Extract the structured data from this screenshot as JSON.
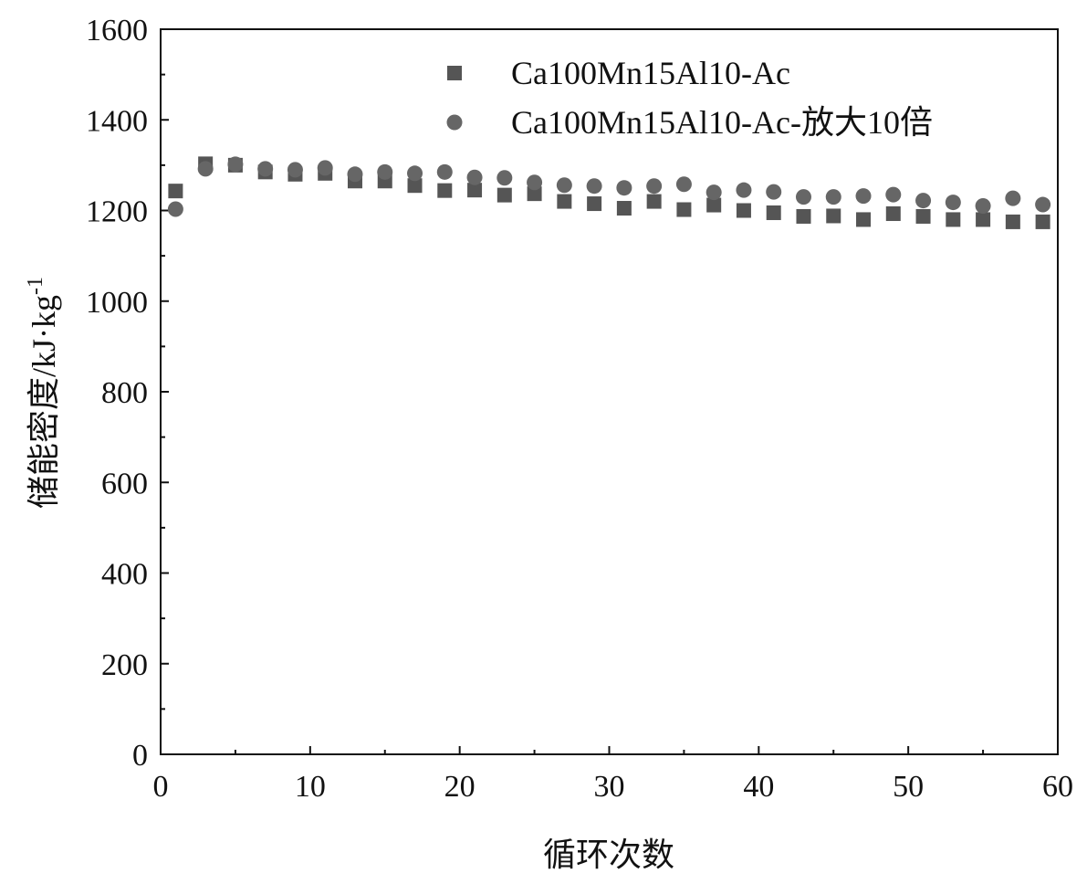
{
  "chart_data": {
    "type": "scatter",
    "title": "",
    "xlabel": "循环次数",
    "ylabel_main": "储能密度/kJ·kg",
    "ylabel_sup": "-1",
    "xlim": [
      0,
      60
    ],
    "ylim": [
      0,
      1600
    ],
    "xticks": [
      0,
      10,
      20,
      30,
      40,
      50,
      60
    ],
    "yticks": [
      0,
      200,
      400,
      600,
      800,
      1000,
      1200,
      1400,
      1600
    ],
    "legend_position": "top-right",
    "grid": false,
    "series": [
      {
        "name": "Ca100Mn15Al10-Ac",
        "marker": "square",
        "color": "#555555",
        "x": [
          1,
          3,
          5,
          7,
          9,
          11,
          13,
          15,
          17,
          19,
          21,
          23,
          25,
          27,
          29,
          31,
          33,
          35,
          37,
          39,
          41,
          43,
          45,
          47,
          49,
          51,
          53,
          55,
          57,
          59
        ],
        "y": [
          1243,
          1303,
          1300,
          1285,
          1280,
          1282,
          1265,
          1265,
          1255,
          1244,
          1245,
          1234,
          1237,
          1220,
          1215,
          1205,
          1220,
          1202,
          1212,
          1200,
          1195,
          1187,
          1188,
          1180,
          1193,
          1187,
          1180,
          1180,
          1175,
          1175
        ]
      },
      {
        "name": "Ca100Mn15Al10-Ac-放大10倍",
        "marker": "circle",
        "color": "#666666",
        "x": [
          1,
          3,
          5,
          7,
          9,
          11,
          13,
          15,
          17,
          19,
          21,
          23,
          25,
          27,
          29,
          31,
          33,
          35,
          37,
          39,
          41,
          43,
          45,
          47,
          49,
          51,
          53,
          55,
          57,
          59
        ],
        "y": [
          1203,
          1292,
          1302,
          1292,
          1290,
          1294,
          1280,
          1285,
          1282,
          1285,
          1273,
          1272,
          1262,
          1256,
          1254,
          1250,
          1254,
          1258,
          1240,
          1245,
          1241,
          1230,
          1230,
          1232,
          1235,
          1222,
          1218,
          1210,
          1227,
          1213
        ]
      }
    ]
  }
}
